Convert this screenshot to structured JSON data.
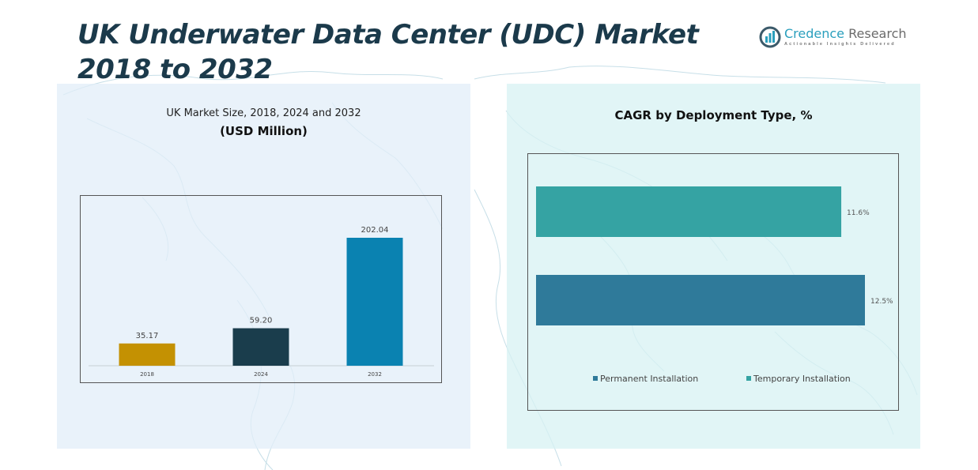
{
  "header": {
    "title": "UK Underwater Data Center (UDC) Market 2018 to 2032",
    "logo": {
      "name_part1": "Credence",
      "name_part2": " Research",
      "tagline": "Actionable Insights Delivered",
      "icon": "bar-chart-logo-icon"
    }
  },
  "chart_data": [
    {
      "type": "bar",
      "title": "UK Market Size, 2018, 2024 and 2032",
      "subtitle": "(USD Million)",
      "categories": [
        "2018",
        "2024",
        "2032"
      ],
      "values": [
        35.17,
        59.2,
        202.04
      ],
      "value_labels": [
        "35.17",
        "59.20",
        "202.04"
      ],
      "colors": [
        "#c49102",
        "#1a3d4c",
        "#0a82b1"
      ],
      "xlabel": "",
      "ylabel": "",
      "ylim": [
        0,
        202.04
      ],
      "grid": false,
      "legend": "none"
    },
    {
      "type": "bar",
      "orientation": "horizontal",
      "title": "CAGR by Deployment Type, %",
      "categories": [
        "Temporary Installation",
        "Permanent Installation"
      ],
      "values": [
        11.6,
        12.5
      ],
      "value_labels": [
        "11.6%",
        "12.5%"
      ],
      "colors": [
        "#35a3a3",
        "#2f7a9a"
      ],
      "xlim": [
        0,
        12.5
      ],
      "grid": false,
      "legend": "bottom",
      "legend_entries": [
        {
          "label": "Permanent Installation",
          "color": "#2f7a9a"
        },
        {
          "label": "Temporary Installation",
          "color": "#35a3a3"
        }
      ]
    }
  ]
}
